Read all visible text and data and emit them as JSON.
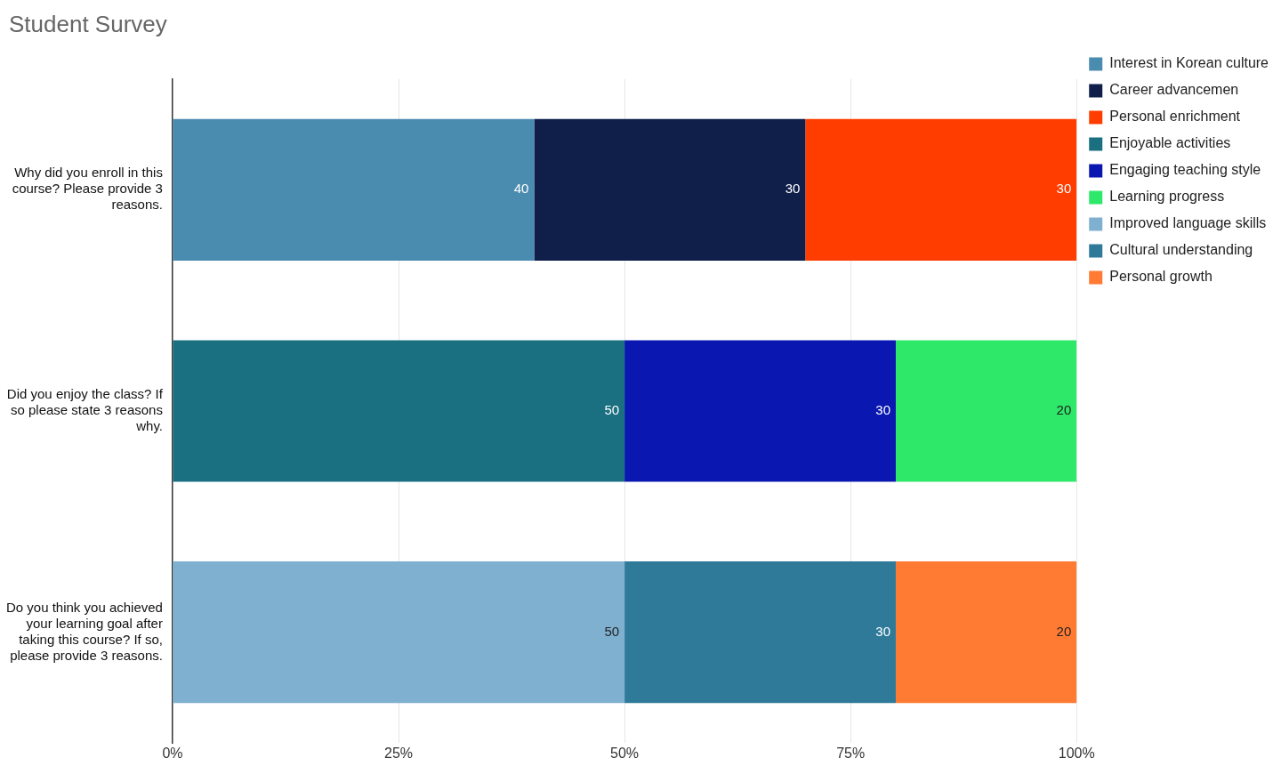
{
  "chart_data": {
    "type": "bar",
    "title": "Student Survey",
    "orientation": "horizontal",
    "stacked": true,
    "data_labels": true,
    "grid": "x",
    "legend": "top right",
    "categories": [
      "Why did you enroll in this course? Please provide 3 reasons.",
      "Did you enjoy the class? If so please state 3 reasons why.",
      "Do you think you achieved your learning goal after taking this course? If so, please provide 3 reasons."
    ],
    "xlim": [
      0,
      100
    ],
    "xticks": [
      {
        "value": 0,
        "label": "0%"
      },
      {
        "value": 25,
        "label": "25%"
      },
      {
        "value": 50,
        "label": "50%"
      },
      {
        "value": 75,
        "label": "75%"
      },
      {
        "value": 100,
        "label": "100%"
      }
    ],
    "series": [
      {
        "name": "Interest in Korean culture",
        "color": "#4a8bb0",
        "values": [
          40,
          null,
          null
        ]
      },
      {
        "name": "Career advancemen",
        "color": "#0f1f4a",
        "values": [
          30,
          null,
          null
        ]
      },
      {
        "name": "Personal enrichment",
        "color": "#ff3d00",
        "values": [
          30,
          null,
          null
        ]
      },
      {
        "name": "Enjoyable activities",
        "color": "#1a6f80",
        "values": [
          null,
          50,
          null
        ]
      },
      {
        "name": "Engaging teaching style",
        "color": "#0a17b0",
        "values": [
          null,
          30,
          null
        ]
      },
      {
        "name": "Learning progress",
        "color": "#2ee86a",
        "values": [
          null,
          20,
          null
        ]
      },
      {
        "name": "Improved language skills",
        "color": "#7fb0d0",
        "values": [
          null,
          null,
          50
        ]
      },
      {
        "name": "Cultural understanding",
        "color": "#2f7a99",
        "values": [
          null,
          null,
          30
        ]
      },
      {
        "name": "Personal growth",
        "color": "#ff7a33",
        "values": [
          null,
          null,
          20
        ]
      }
    ]
  }
}
